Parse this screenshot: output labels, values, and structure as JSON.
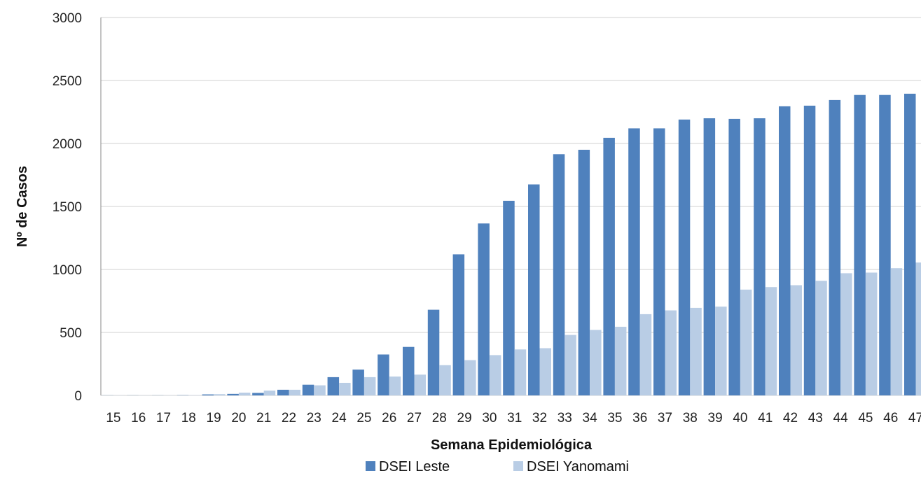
{
  "chart_data": {
    "type": "bar",
    "xlabel": "Semana Epidemiológica",
    "ylabel": "Nº de Casos",
    "ylim": [
      0,
      3000
    ],
    "yticks": [
      0,
      500,
      1000,
      1500,
      2000,
      2500,
      3000
    ],
    "grid": true,
    "legend_position": "bottom",
    "categories": [
      "15",
      "16",
      "17",
      "18",
      "19",
      "20",
      "21",
      "22",
      "23",
      "24",
      "25",
      "26",
      "27",
      "28",
      "29",
      "30",
      "31",
      "32",
      "33",
      "34",
      "35",
      "36",
      "37",
      "38",
      "39",
      "40",
      "41",
      "42",
      "43",
      "44",
      "45",
      "46",
      "47"
    ],
    "series": [
      {
        "name": "DSEI Leste",
        "color": "#4F81BD",
        "values": [
          1,
          1,
          1,
          2,
          8,
          12,
          20,
          45,
          85,
          145,
          205,
          325,
          385,
          680,
          1120,
          1365,
          1545,
          1675,
          1915,
          1950,
          2045,
          2120,
          2120,
          2190,
          2200,
          2195,
          2200,
          2295,
          2300,
          2345,
          2385,
          2385,
          2395
        ]
      },
      {
        "name": "DSEI Yanomami",
        "color": "#B9CDE5",
        "values": [
          1,
          1,
          1,
          2,
          10,
          22,
          38,
          45,
          80,
          100,
          145,
          150,
          165,
          240,
          280,
          320,
          365,
          375,
          480,
          520,
          545,
          645,
          675,
          695,
          705,
          840,
          860,
          875,
          910,
          970,
          975,
          1010,
          1055
        ]
      }
    ]
  }
}
